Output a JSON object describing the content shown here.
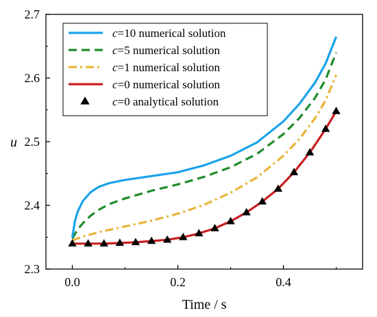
{
  "chart_data": {
    "type": "line",
    "xlabel": "Time / s",
    "ylabel": "u",
    "xlim": [
      -0.05,
      0.55
    ],
    "ylim": [
      2.3,
      2.7
    ],
    "xticks": [
      0.0,
      0.2,
      0.4
    ],
    "xtick_labels": [
      "0.0",
      "0.2",
      "0.4"
    ],
    "yticks": [
      2.3,
      2.4,
      2.5,
      2.6,
      2.7
    ],
    "ytick_labels": [
      "2.3",
      "2.4",
      "2.5",
      "2.6",
      "2.7"
    ],
    "grid": false,
    "legend_position": "top-left",
    "series": [
      {
        "name": "c=10 numerical solution",
        "legend_var": "c",
        "legend_rest": "=10 numerical solution",
        "color": "#1aa3ea",
        "style": "solid",
        "x": [
          0.0,
          0.005,
          0.01,
          0.02,
          0.035,
          0.05,
          0.07,
          0.1,
          0.15,
          0.2,
          0.25,
          0.3,
          0.35,
          0.4,
          0.43,
          0.46,
          0.48,
          0.5
        ],
        "y": [
          2.35,
          2.375,
          2.39,
          2.407,
          2.421,
          2.429,
          2.435,
          2.44,
          2.446,
          2.452,
          2.463,
          2.478,
          2.499,
          2.532,
          2.559,
          2.593,
          2.623,
          2.665
        ]
      },
      {
        "name": "c=5 numerical solution",
        "legend_var": "c",
        "legend_rest": "=5 numerical solution",
        "color": "#1e8c2a",
        "style": "dash",
        "x": [
          0.0,
          0.01,
          0.02,
          0.035,
          0.05,
          0.07,
          0.1,
          0.15,
          0.2,
          0.25,
          0.3,
          0.35,
          0.4,
          0.43,
          0.46,
          0.48,
          0.5
        ],
        "y": [
          2.348,
          2.362,
          2.372,
          2.384,
          2.393,
          2.402,
          2.411,
          2.423,
          2.433,
          2.445,
          2.46,
          2.481,
          2.512,
          2.537,
          2.569,
          2.598,
          2.64
        ]
      },
      {
        "name": "c=1 numerical solution",
        "legend_var": "c",
        "legend_rest": "=1 numerical solution",
        "color": "#e8b438",
        "style": "dashdot",
        "x": [
          0.0,
          0.02,
          0.05,
          0.1,
          0.15,
          0.2,
          0.25,
          0.3,
          0.35,
          0.4,
          0.43,
          0.46,
          0.48,
          0.5
        ],
        "y": [
          2.345,
          2.351,
          2.358,
          2.367,
          2.376,
          2.387,
          2.401,
          2.42,
          2.444,
          2.478,
          2.504,
          2.537,
          2.565,
          2.605
        ]
      },
      {
        "name": "c=0 numerical solution",
        "legend_var": "c",
        "legend_rest": "=0 numerical solution",
        "color": "#c81e1e",
        "style": "solid",
        "x": [
          0.0,
          0.03,
          0.06,
          0.09,
          0.12,
          0.15,
          0.18,
          0.21,
          0.24,
          0.27,
          0.3,
          0.33,
          0.36,
          0.39,
          0.42,
          0.45,
          0.48,
          0.5
        ],
        "y": [
          2.34,
          2.34,
          2.34,
          2.341,
          2.342,
          2.344,
          2.346,
          2.35,
          2.356,
          2.364,
          2.375,
          2.389,
          2.406,
          2.426,
          2.452,
          2.483,
          2.52,
          2.548
        ]
      },
      {
        "name": "c=0 analytical solution",
        "legend_var": "c",
        "legend_rest": "=0 analytical solution",
        "color": "#000000",
        "style": "triangle",
        "x": [
          0.0,
          0.03,
          0.06,
          0.09,
          0.12,
          0.15,
          0.18,
          0.21,
          0.24,
          0.27,
          0.3,
          0.33,
          0.36,
          0.39,
          0.42,
          0.45,
          0.48,
          0.5
        ],
        "y": [
          2.34,
          2.34,
          2.34,
          2.341,
          2.342,
          2.344,
          2.346,
          2.35,
          2.356,
          2.364,
          2.375,
          2.389,
          2.406,
          2.426,
          2.452,
          2.483,
          2.52,
          2.548
        ]
      }
    ]
  }
}
